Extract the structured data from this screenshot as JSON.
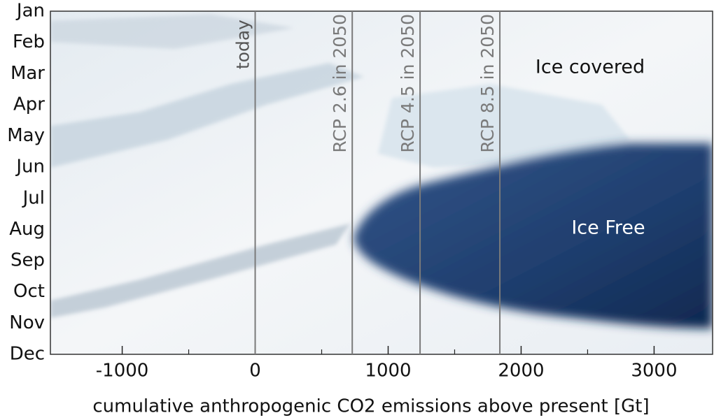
{
  "chart_data": {
    "type": "vline",
    "xlabel": "cumulative anthropogenic CO2 emissions above present [Gt]",
    "xlim": [
      -1540,
      3440
    ],
    "xticks": [
      -1000,
      0,
      1000,
      2000,
      3000
    ],
    "xminorticks": [
      -500,
      500,
      1500,
      2500
    ],
    "y_categories": [
      "Jan",
      "Feb",
      "Mar",
      "Apr",
      "May",
      "Jun",
      "Jul",
      "Aug",
      "Sep",
      "Oct",
      "Nov",
      "Dec"
    ],
    "vlines": [
      {
        "label": "today",
        "x": 0
      },
      {
        "label": "RCP 2.6 in 2050",
        "x": 730
      },
      {
        "label": "RCP 4.5 in 2050",
        "x": 1240
      },
      {
        "label": "RCP 8.5 in 2050",
        "x": 1840
      }
    ],
    "line_color": "#7a7a7a",
    "annotations": [
      "Ice covered",
      "Ice Free"
    ]
  }
}
